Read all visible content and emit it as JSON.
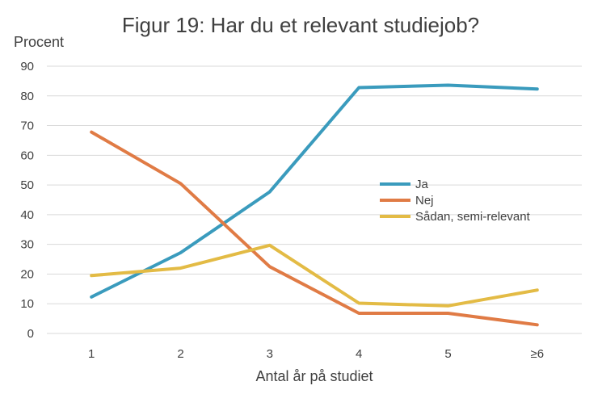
{
  "chart_data": {
    "type": "line",
    "title": "Figur 19: Har du et relevant studiejob?",
    "ylabel": "Procent",
    "xlabel": "Antal år på studiet",
    "categories": [
      "1",
      "2",
      "3",
      "4",
      "5",
      "≥6"
    ],
    "ylim": [
      0,
      90
    ],
    "yticks": [
      0,
      10,
      20,
      30,
      40,
      50,
      60,
      70,
      80,
      90
    ],
    "grid": true,
    "legend_position": "right-center",
    "series": [
      {
        "name": "Ja",
        "color": "#3a9bbd",
        "values": [
          12.3,
          27.2,
          47.7,
          82.8,
          83.6,
          82.3
        ]
      },
      {
        "name": "Nej",
        "color": "#e07b45",
        "values": [
          67.8,
          50.5,
          22.5,
          6.8,
          6.8,
          2.9
        ]
      },
      {
        "name": "Sådan, semi-relevant",
        "color": "#e3bb45",
        "values": [
          19.5,
          22.0,
          29.7,
          10.2,
          9.3,
          14.6
        ]
      }
    ]
  }
}
